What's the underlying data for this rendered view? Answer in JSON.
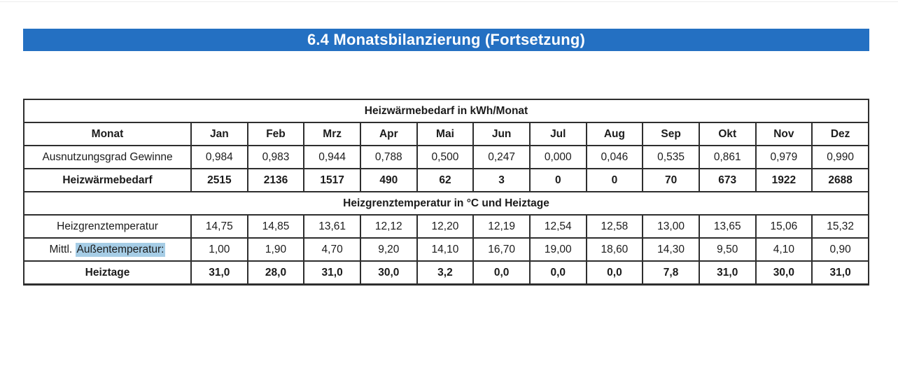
{
  "header": {
    "title": "6.4 Monatsbilanzierung (Fortsetzung)"
  },
  "colors": {
    "title_bar": "#2470c2",
    "title_text": "#ffffff",
    "border": "#2e2e2e",
    "text": "#1b1b1b",
    "highlight": "#a6cde6"
  },
  "table": {
    "columns": [
      "Monat",
      "Jan",
      "Feb",
      "Mrz",
      "Apr",
      "Mai",
      "Jun",
      "Jul",
      "Aug",
      "Sep",
      "Okt",
      "Nov",
      "Dez"
    ],
    "sections": [
      {
        "title": "Heizwärmebedarf in kWh/Monat",
        "rows": [
          {
            "label_parts": [
              {
                "text": "Ausnutzungsgrad Gewinne",
                "highlight": false
              }
            ],
            "bold": false,
            "values": [
              "0,984",
              "0,983",
              "0,944",
              "0,788",
              "0,500",
              "0,247",
              "0,000",
              "0,046",
              "0,535",
              "0,861",
              "0,979",
              "0,990"
            ]
          },
          {
            "label_parts": [
              {
                "text": "Heizwärmebedarf",
                "highlight": false
              }
            ],
            "bold": true,
            "values": [
              "2515",
              "2136",
              "1517",
              "490",
              "62",
              "3",
              "0",
              "0",
              "70",
              "673",
              "1922",
              "2688"
            ]
          }
        ]
      },
      {
        "title": "Heizgrenztemperatur in °C und Heiztage",
        "rows": [
          {
            "label_parts": [
              {
                "text": "Heizgrenztemperatur",
                "highlight": false
              }
            ],
            "bold": false,
            "values": [
              "14,75",
              "14,85",
              "13,61",
              "12,12",
              "12,20",
              "12,19",
              "12,54",
              "12,58",
              "13,00",
              "13,65",
              "15,06",
              "15,32"
            ]
          },
          {
            "label_parts": [
              {
                "text": "Mittl. ",
                "highlight": false
              },
              {
                "text": "Außentemperatur:",
                "highlight": true
              }
            ],
            "bold": false,
            "values": [
              "1,00",
              "1,90",
              "4,70",
              "9,20",
              "14,10",
              "16,70",
              "19,00",
              "18,60",
              "14,30",
              "9,50",
              "4,10",
              "0,90"
            ]
          },
          {
            "label_parts": [
              {
                "text": "Heiztage",
                "highlight": false
              }
            ],
            "bold": true,
            "values": [
              "31,0",
              "28,0",
              "31,0",
              "30,0",
              "3,2",
              "0,0",
              "0,0",
              "0,0",
              "7,8",
              "31,0",
              "30,0",
              "31,0"
            ]
          }
        ]
      }
    ]
  }
}
